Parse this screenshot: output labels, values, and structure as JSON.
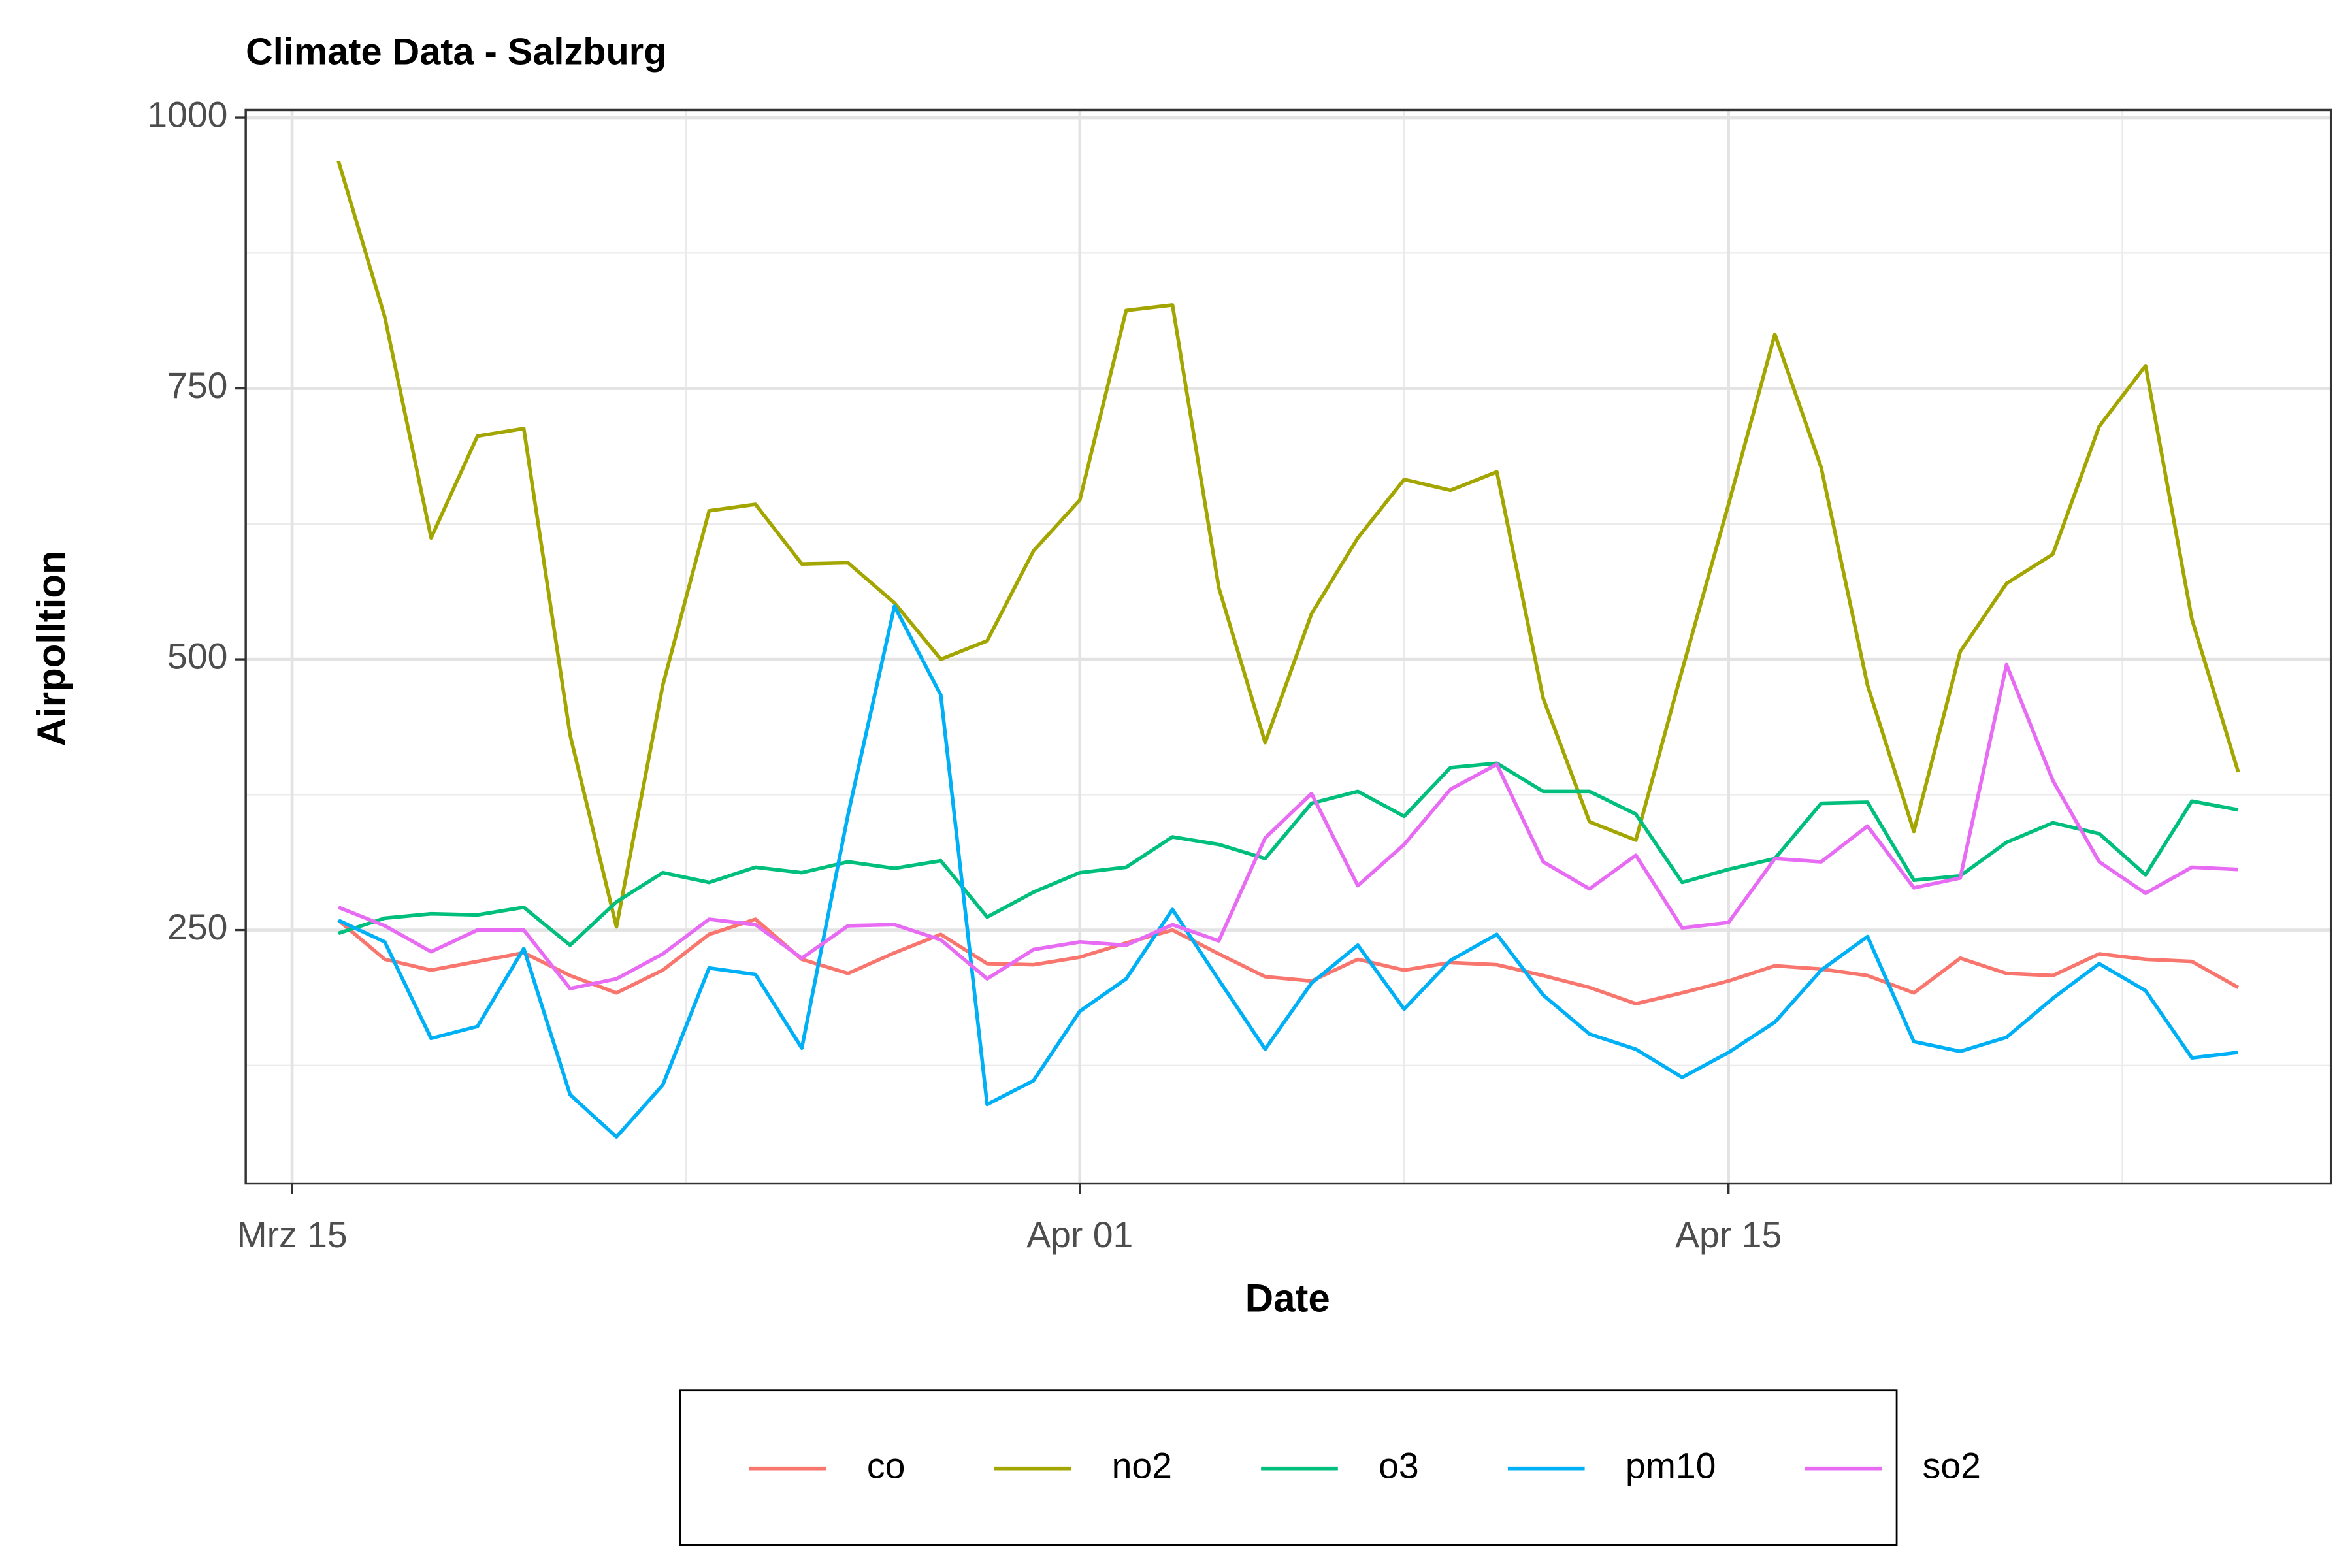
{
  "chart_data": {
    "type": "line",
    "title": "Climate Data -  Salzburg",
    "xlabel": "Date",
    "ylabel": "Airpolltion",
    "x": [
      "03-16",
      "03-17",
      "03-18",
      "03-19",
      "03-20",
      "03-21",
      "03-22",
      "03-23",
      "03-24",
      "03-25",
      "03-26",
      "03-27",
      "03-28",
      "03-29",
      "03-30",
      "03-31",
      "04-01",
      "04-02",
      "04-03",
      "04-04",
      "04-05",
      "04-06",
      "04-07",
      "04-08",
      "04-09",
      "04-10",
      "04-11",
      "04-12",
      "04-13",
      "04-14",
      "04-15",
      "04-16",
      "04-17",
      "04-18",
      "04-19",
      "04-20",
      "04-21",
      "04-22",
      "04-23",
      "04-24",
      "04-25",
      "04-26"
    ],
    "xlim": [
      "03-14",
      "04-28"
    ],
    "xticks": [
      {
        "value": "03-15",
        "label": "Mrz 15"
      },
      {
        "value": "04-01",
        "label": "Apr 01"
      },
      {
        "value": "04-15",
        "label": "Apr 15"
      }
    ],
    "ylim": [
      16,
      1007
    ],
    "yticks": [
      250,
      500,
      750,
      1000
    ],
    "grid": true,
    "legend": "bottom",
    "series": [
      {
        "name": "co",
        "color": "#F8766D",
        "values": [
          259,
          223,
          213,
          221,
          229,
          208,
          192,
          213,
          246,
          260,
          223,
          210,
          229,
          246,
          219,
          218,
          225,
          238,
          250,
          228,
          207,
          203,
          223,
          213,
          220,
          218,
          208,
          197,
          182,
          192,
          203,
          217,
          214,
          208,
          192,
          224,
          210,
          208,
          228,
          223,
          221,
          197
        ]
      },
      {
        "name": "no2",
        "color": "#A3A500",
        "values": [
          960,
          816,
          612,
          706,
          713,
          430,
          253,
          476,
          637,
          643,
          588,
          589,
          552,
          500,
          517,
          600,
          647,
          822,
          827,
          566,
          423,
          542,
          612,
          666,
          656,
          673,
          464,
          350,
          333,
          490,
          643,
          800,
          677,
          476,
          341,
          507,
          570,
          597,
          715,
          771,
          537,
          396
        ]
      },
      {
        "name": "o3",
        "color": "#00BF7D",
        "values": [
          247,
          261,
          265,
          264,
          271,
          236,
          276,
          303,
          294,
          308,
          303,
          313,
          307,
          314,
          262,
          285,
          303,
          308,
          336,
          329,
          316,
          367,
          378,
          355,
          400,
          404,
          378,
          378,
          357,
          294,
          306,
          316,
          367,
          368,
          296,
          300,
          331,
          349,
          339,
          301,
          369,
          361
        ]
      },
      {
        "name": "pm10",
        "color": "#00B0F6",
        "values": [
          259,
          239,
          150,
          161,
          233,
          98,
          59,
          107,
          215,
          209,
          141,
          357,
          549,
          467,
          89,
          111,
          175,
          205,
          269,
          204,
          140,
          201,
          236,
          177,
          222,
          246,
          190,
          154,
          140,
          114,
          137,
          165,
          213,
          244,
          147,
          138,
          151,
          187,
          219,
          194,
          132,
          137
        ]
      },
      {
        "name": "so2",
        "color": "#E76BF3",
        "values": [
          271,
          254,
          230,
          250,
          250,
          196,
          205,
          228,
          260,
          255,
          224,
          254,
          255,
          241,
          205,
          232,
          239,
          236,
          255,
          240,
          335,
          376,
          291,
          329,
          380,
          403,
          313,
          288,
          319,
          252,
          257,
          316,
          313,
          346,
          289,
          298,
          495,
          388,
          313,
          284,
          308,
          306
        ]
      }
    ]
  }
}
